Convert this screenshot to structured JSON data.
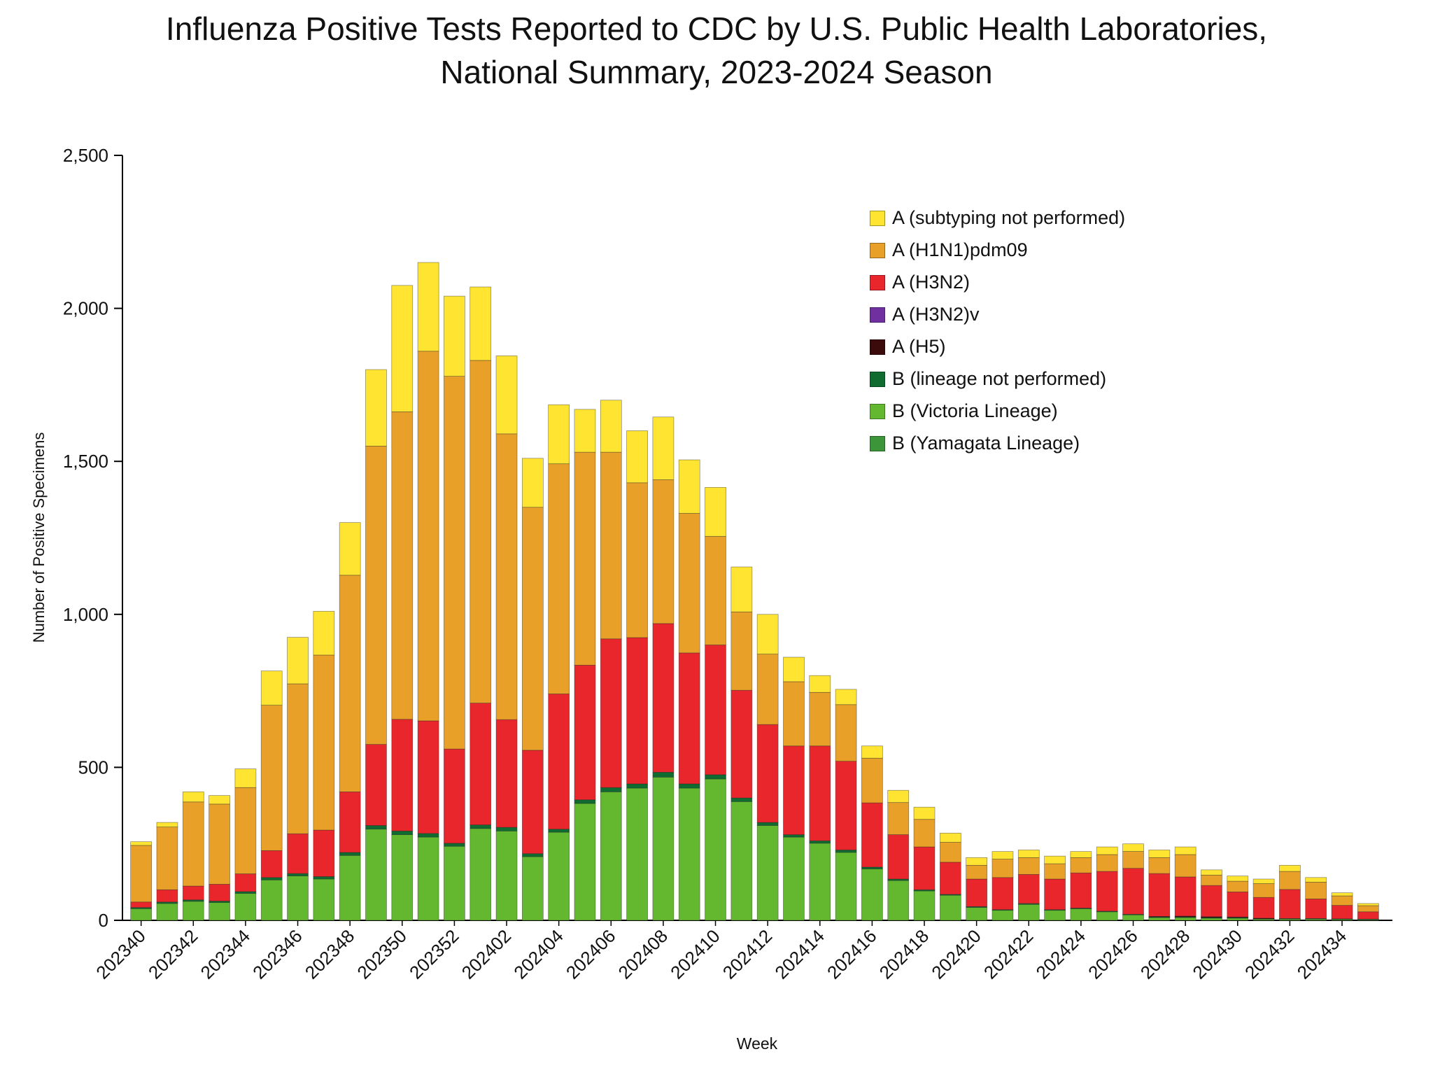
{
  "chart_data": {
    "type": "bar",
    "stacked": true,
    "title": "Influenza Positive Tests Reported to CDC by U.S. Public Health Laboratories, National Summary, 2023-2024 Season",
    "title_lines": [
      "Influenza Positive Tests Reported to CDC by U.S. Public Health Laboratories,",
      "National Summary, 2023-2024 Season"
    ],
    "xlabel": "Week",
    "ylabel": "Number of Positive Specimens",
    "ylim": [
      0,
      2500
    ],
    "yticks": [
      0,
      500,
      1000,
      1500,
      2000,
      2500
    ],
    "xtick_every": 2,
    "grid": false,
    "legend_position": "upper-right-inside",
    "background_color": "#FFFFFF",
    "categories": [
      "202340",
      "202341",
      "202342",
      "202343",
      "202344",
      "202345",
      "202346",
      "202347",
      "202348",
      "202349",
      "202350",
      "202351",
      "202352",
      "202401",
      "202402",
      "202403",
      "202404",
      "202405",
      "202406",
      "202407",
      "202408",
      "202409",
      "202410",
      "202411",
      "202412",
      "202413",
      "202414",
      "202415",
      "202416",
      "202417",
      "202418",
      "202419",
      "202420",
      "202421",
      "202422",
      "202423",
      "202424",
      "202425",
      "202426",
      "202427",
      "202428",
      "202429",
      "202430",
      "202431",
      "202432",
      "202433",
      "202434",
      "202435"
    ],
    "legend_order": [
      "A (subtyping not performed)",
      "A (H1N1)pdm09",
      "A (H3N2)",
      "A (H3N2)v",
      "A (H5)",
      "B (lineage not performed)",
      "B (Victoria Lineage)",
      "B (Yamagata Lineage)"
    ],
    "series": [
      {
        "name": "B (Victoria Lineage)",
        "color": "#63B82F",
        "values": [
          38,
          55,
          62,
          58,
          88,
          132,
          145,
          135,
          212,
          298,
          280,
          272,
          242,
          300,
          292,
          208,
          288,
          382,
          420,
          432,
          468,
          432,
          462,
          388,
          310,
          272,
          252,
          222,
          168,
          130,
          96,
          82,
          42,
          33,
          52,
          33,
          38,
          28,
          18,
          10,
          10,
          8,
          8,
          5,
          5,
          5,
          4,
          3
        ]
      },
      {
        "name": "B (Yamagata Lineage)",
        "color": "#3C9639",
        "values": [
          0,
          0,
          0,
          0,
          0,
          0,
          0,
          0,
          0,
          0,
          0,
          0,
          0,
          0,
          0,
          0,
          0,
          0,
          0,
          0,
          0,
          0,
          0,
          0,
          0,
          0,
          0,
          0,
          0,
          0,
          0,
          0,
          0,
          0,
          0,
          0,
          0,
          0,
          0,
          0,
          0,
          0,
          0,
          0,
          0,
          0,
          0,
          0
        ]
      },
      {
        "name": "B (lineage not performed)",
        "color": "#0F6B2F",
        "values": [
          4,
          5,
          5,
          5,
          6,
          8,
          8,
          8,
          10,
          12,
          12,
          12,
          10,
          12,
          12,
          10,
          10,
          12,
          14,
          14,
          16,
          14,
          14,
          12,
          10,
          8,
          8,
          8,
          6,
          5,
          4,
          3,
          3,
          2,
          3,
          2,
          2,
          2,
          2,
          1,
          1,
          1,
          1,
          1,
          1,
          1,
          1,
          1
        ]
      },
      {
        "name": "A (H5)",
        "color": "#3B0A0A",
        "values": [
          0,
          0,
          0,
          0,
          0,
          0,
          0,
          0,
          0,
          0,
          0,
          0,
          0,
          0,
          0,
          0,
          0,
          0,
          0,
          0,
          0,
          0,
          0,
          0,
          0,
          0,
          0,
          0,
          0,
          0,
          0,
          0,
          0,
          0,
          0,
          0,
          0,
          0,
          0,
          2,
          3,
          3,
          2,
          1,
          0,
          0,
          0,
          0
        ]
      },
      {
        "name": "A (H3N2)v",
        "color": "#7030A0",
        "values": [
          0,
          0,
          0,
          0,
          0,
          0,
          0,
          0,
          0,
          0,
          0,
          0,
          0,
          0,
          0,
          0,
          0,
          0,
          0,
          0,
          0,
          0,
          0,
          0,
          0,
          0,
          0,
          0,
          0,
          0,
          0,
          0,
          0,
          0,
          0,
          0,
          0,
          0,
          0,
          0,
          0,
          0,
          0,
          0,
          0,
          0,
          0,
          0
        ]
      },
      {
        "name": "A (H3N2)",
        "color": "#E9262B",
        "values": [
          18,
          40,
          45,
          55,
          58,
          88,
          130,
          152,
          198,
          265,
          365,
          368,
          308,
          398,
          352,
          338,
          442,
          440,
          486,
          478,
          486,
          428,
          424,
          352,
          320,
          290,
          310,
          290,
          210,
          145,
          140,
          105,
          90,
          105,
          95,
          100,
          115,
          130,
          150,
          140,
          128,
          102,
          82,
          68,
          95,
          64,
          44,
          24
        ]
      },
      {
        "name": "A (H1N1)pdm09",
        "color": "#E8A028",
        "values": [
          185,
          205,
          275,
          262,
          282,
          475,
          490,
          572,
          708,
          975,
          1005,
          1208,
          1218,
          1120,
          934,
          794,
          752,
          696,
          610,
          506,
          470,
          456,
          355,
          256,
          230,
          210,
          175,
          185,
          146,
          105,
          90,
          65,
          45,
          60,
          55,
          50,
          50,
          55,
          55,
          52,
          73,
          34,
          35,
          45,
          59,
          55,
          31,
          20
        ]
      },
      {
        "name": "A (subtyping not performed)",
        "color": "#FFE431",
        "values": [
          12,
          15,
          33,
          28,
          61,
          112,
          152,
          143,
          172,
          250,
          413,
          290,
          262,
          240,
          255,
          160,
          193,
          140,
          170,
          170,
          205,
          175,
          160,
          147,
          130,
          80,
          55,
          50,
          40,
          40,
          40,
          30,
          25,
          25,
          25,
          25,
          20,
          25,
          25,
          25,
          25,
          17,
          17,
          15,
          20,
          15,
          10,
          7
        ]
      }
    ]
  }
}
